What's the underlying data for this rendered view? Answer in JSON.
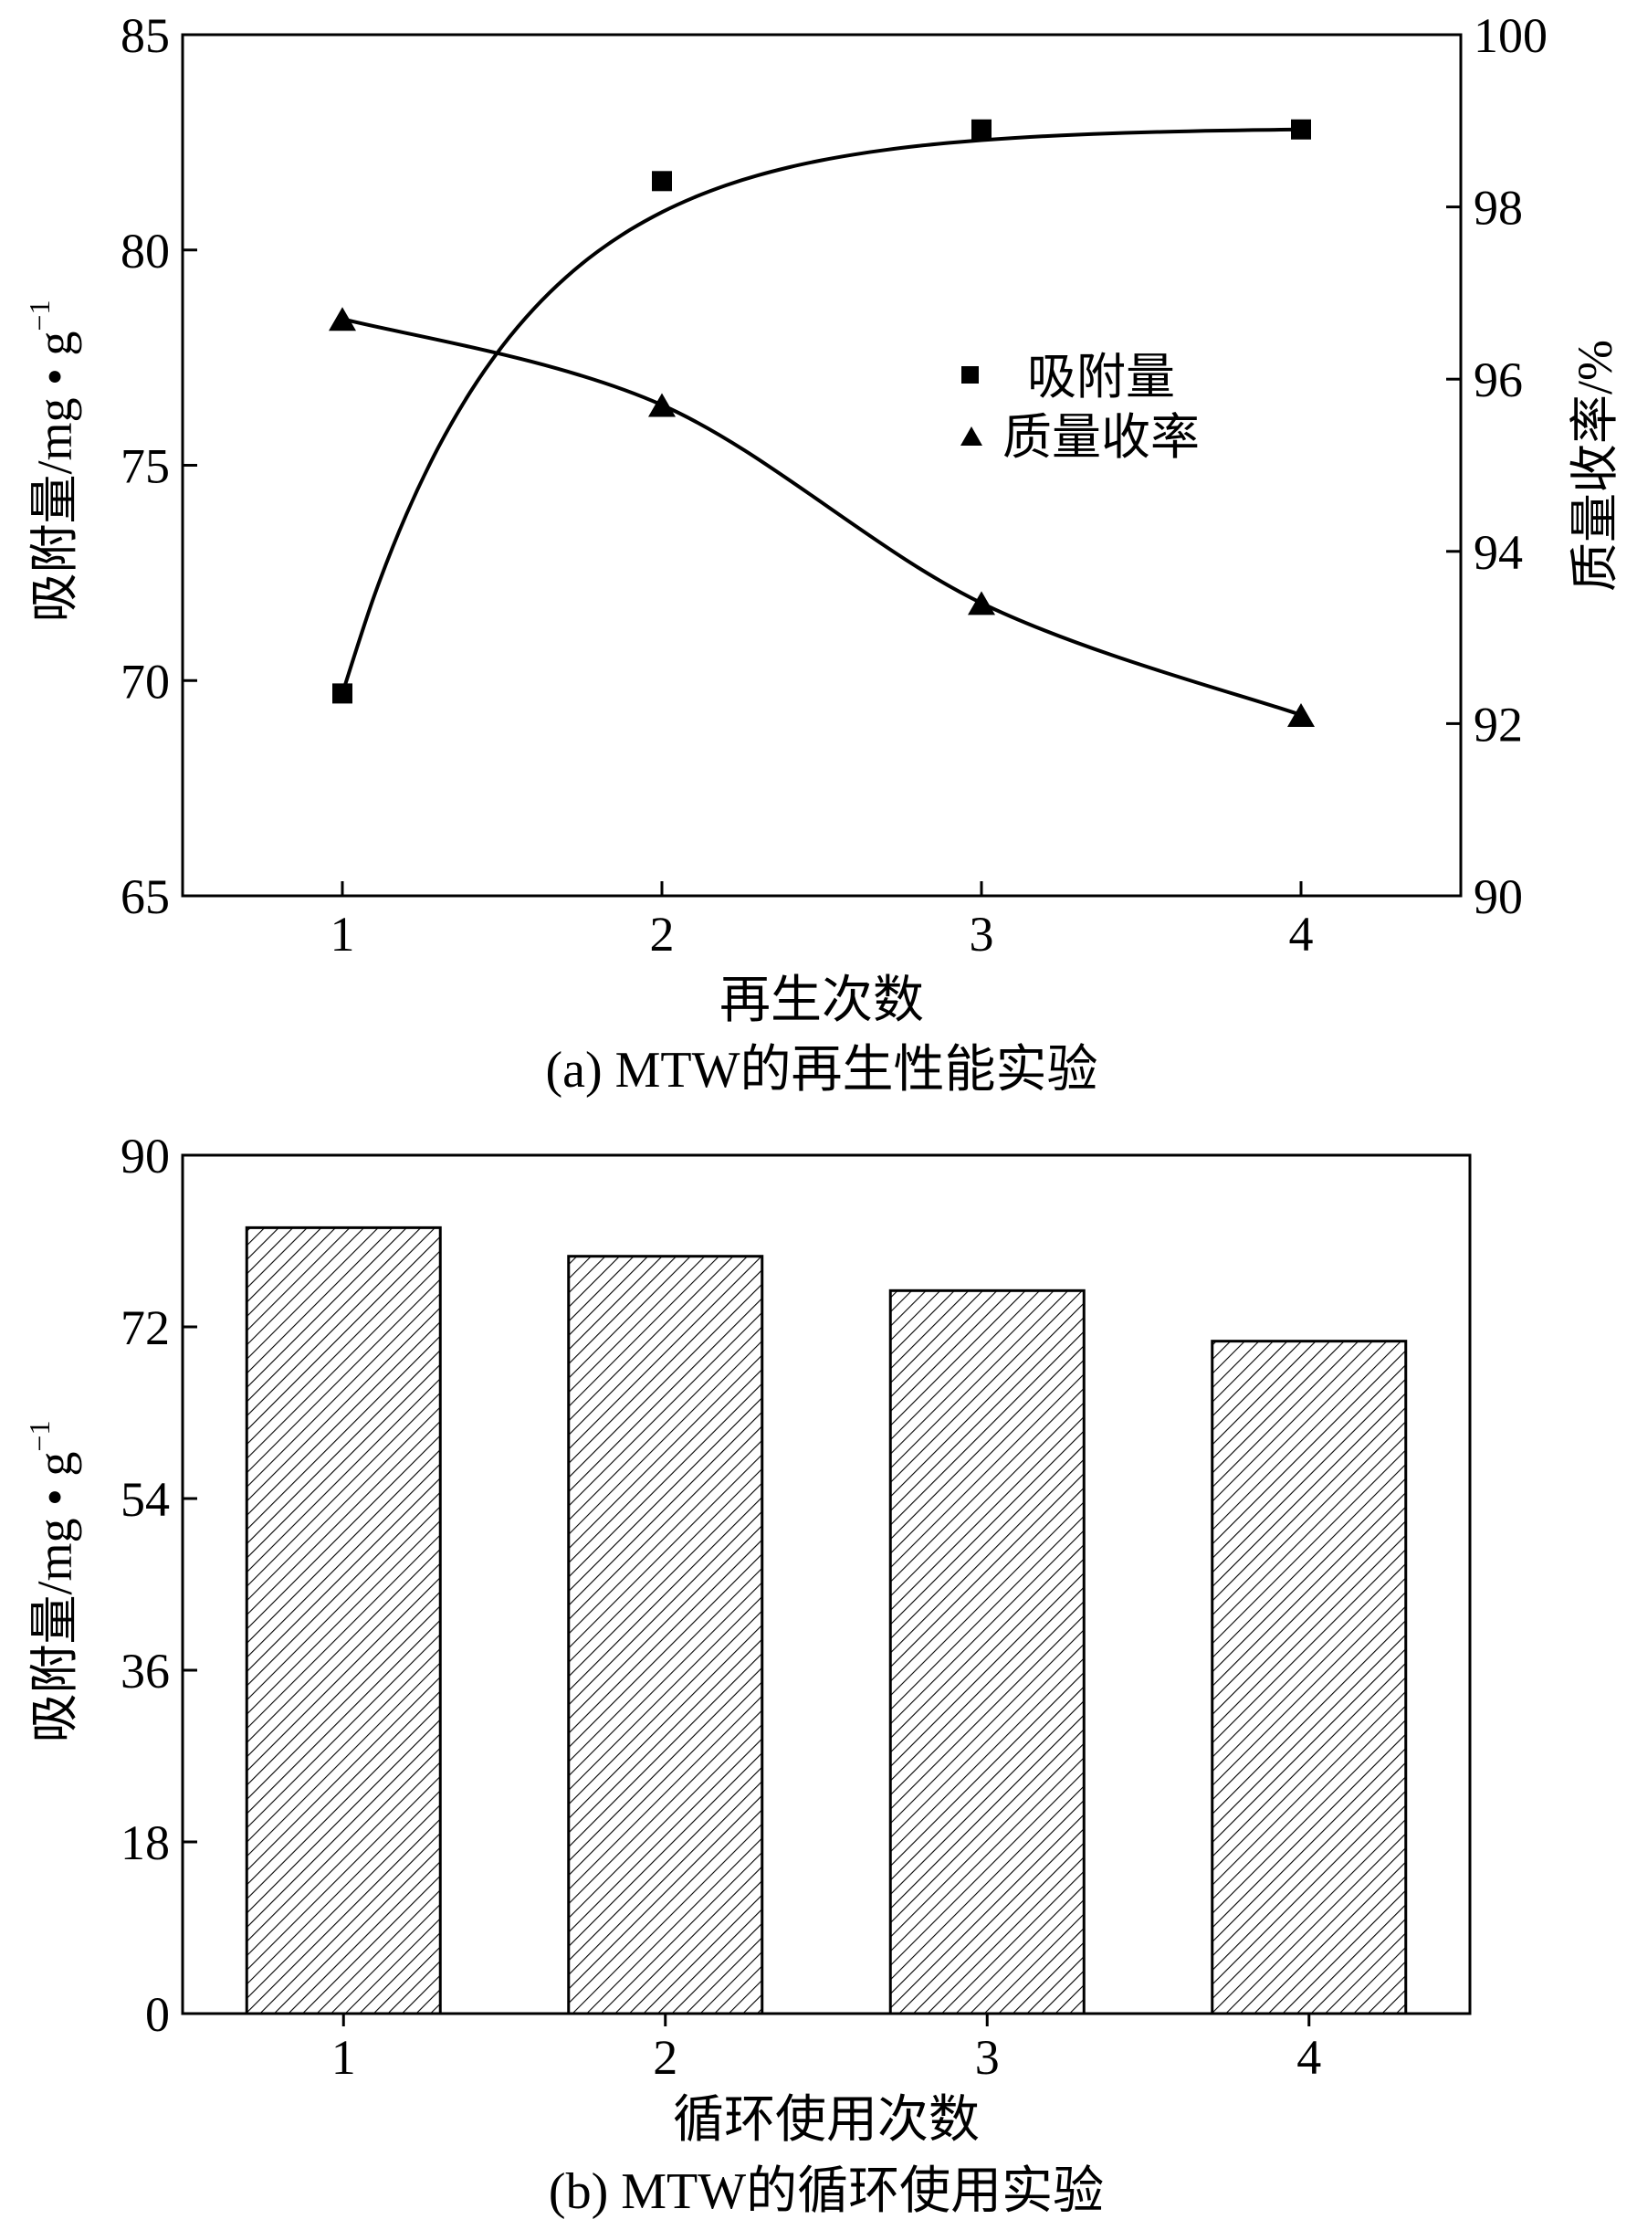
{
  "chart_data": [
    {
      "type": "scatter",
      "caption": "(a) MTW的再生性能实验",
      "xlabel": "再生次数",
      "ylabel_left": "吸附量/mg • g",
      "ylabel_left_sup": "−1",
      "ylabel_right": "质量收率/%",
      "x_ticks": [
        "1",
        "2",
        "3",
        "4"
      ],
      "xlim": [
        0.5,
        4.5
      ],
      "ylim_left": [
        65,
        85
      ],
      "yticks_left": [
        "65",
        "70",
        "75",
        "80",
        "85"
      ],
      "ylim_right": [
        90,
        100
      ],
      "yticks_right": [
        "90",
        "92",
        "94",
        "96",
        "98",
        "100"
      ],
      "legend_position": "center-right",
      "series": [
        {
          "name": "吸附量",
          "axis": "left",
          "marker": "square",
          "x": [
            1,
            2,
            3,
            4
          ],
          "y": [
            69.7,
            81.6,
            82.8,
            82.8
          ],
          "fit_curve": true
        },
        {
          "name": "质量收率",
          "axis": "right",
          "marker": "triangle",
          "x": [
            1,
            2,
            3,
            4
          ],
          "y": [
            96.7,
            95.7,
            93.4,
            92.1
          ],
          "fit_curve": true
        }
      ]
    },
    {
      "type": "bar",
      "caption": "(b) MTW的循环使用实验",
      "xlabel": "循环使用次数",
      "ylabel": "吸附量/mg • g",
      "ylabel_sup": "−1",
      "categories": [
        "1",
        "2",
        "3",
        "4"
      ],
      "values": [
        82.4,
        79.4,
        75.8,
        70.5
      ],
      "ylim": [
        0,
        90
      ],
      "yticks": [
        "0",
        "18",
        "36",
        "54",
        "72",
        "90"
      ],
      "fill": "diagonal-hatch"
    }
  ]
}
